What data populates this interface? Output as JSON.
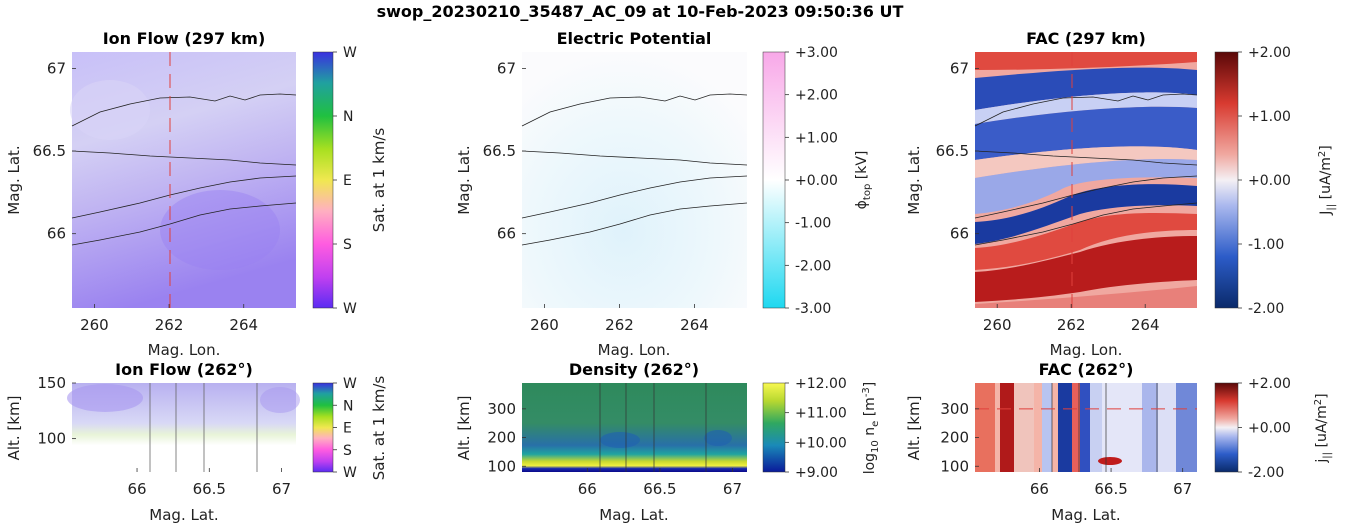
{
  "figure_title": "swop_20230210_35487_AC_09 at 10-Feb-2023 09:50:36 UT",
  "colors": {
    "ion_flow_bg": "#b8b0f0",
    "potential_bg": "#eaf6fb",
    "fac_positive": "#b2182b",
    "fac_negative": "#2c4fa8",
    "density_high": "#2e8b57",
    "density_low": "#1f3fa0",
    "cut_line": "#e0403c",
    "contour": "#222222"
  },
  "chart_data": [
    {
      "id": "ion_flow_map",
      "type": "heatmap",
      "title": "Ion Flow (297 km)",
      "xlabel": "Mag. Lon.",
      "ylabel": "Mag. Lat.",
      "xlim": [
        259.4,
        265.4
      ],
      "ylim": [
        65.55,
        67.1
      ],
      "xticks": [
        {
          "v": 260,
          "t": "260"
        },
        {
          "v": 262,
          "t": "262"
        },
        {
          "v": 264,
          "t": "264"
        }
      ],
      "yticks": [
        {
          "v": 66,
          "t": "66"
        },
        {
          "v": 66.5,
          "t": "66.5"
        },
        {
          "v": 67,
          "t": "67"
        }
      ],
      "cut_lon": 262,
      "colorbar": {
        "label": "Sat. at 1 km/s",
        "ticks": [
          "W",
          "N",
          "E",
          "S",
          "W"
        ]
      }
    },
    {
      "id": "potential_map",
      "type": "heatmap",
      "title": "Electric Potential",
      "xlabel": "Mag. Lon.",
      "ylabel": "Mag. Lat.",
      "xlim": [
        259.4,
        265.4
      ],
      "ylim": [
        65.55,
        67.1
      ],
      "xticks": [
        {
          "v": 260,
          "t": "260"
        },
        {
          "v": 262,
          "t": "262"
        },
        {
          "v": 264,
          "t": "264"
        }
      ],
      "yticks": [
        {
          "v": 66,
          "t": "66"
        },
        {
          "v": 66.5,
          "t": "66.5"
        },
        {
          "v": 67,
          "t": "67"
        }
      ],
      "colorbar": {
        "label": "ϕtop [kV]",
        "ticks": [
          "+3.00",
          "+2.00",
          "+1.00",
          "+0.00",
          "-1.00",
          "-2.00",
          "-3.00"
        ]
      }
    },
    {
      "id": "fac_map",
      "type": "heatmap",
      "title": "FAC (297 km)",
      "xlabel": "Mag. Lon.",
      "ylabel": "Mag. Lat.",
      "xlim": [
        259.4,
        265.4
      ],
      "ylim": [
        65.55,
        67.1
      ],
      "xticks": [
        {
          "v": 260,
          "t": "260"
        },
        {
          "v": 262,
          "t": "262"
        },
        {
          "v": 264,
          "t": "264"
        }
      ],
      "yticks": [
        {
          "v": 66,
          "t": "66"
        },
        {
          "v": 66.5,
          "t": "66.5"
        },
        {
          "v": 67,
          "t": "67"
        }
      ],
      "cut_lon": 262,
      "colorbar": {
        "label": "J|| [uA/m2]",
        "ticks": [
          "+2.00",
          "+1.00",
          "+0.00",
          "-1.00",
          "-2.00"
        ]
      }
    },
    {
      "id": "ion_flow_cut",
      "type": "heatmap",
      "title": "Ion Flow (262°)",
      "xlabel": "Mag. Lat.",
      "ylabel": "Alt. [km]",
      "xlim": [
        65.55,
        67.1
      ],
      "ylim": [
        70,
        150
      ],
      "xticks": [
        {
          "v": 66,
          "t": "66"
        },
        {
          "v": 66.5,
          "t": "66.5"
        },
        {
          "v": 67,
          "t": "67"
        }
      ],
      "yticks": [
        {
          "v": 100,
          "t": "100"
        },
        {
          "v": 150,
          "t": "150"
        }
      ],
      "colorbar": {
        "label": "Sat. at 1 km/s",
        "ticks": [
          "W",
          "N",
          "E",
          "S",
          "W"
        ]
      }
    },
    {
      "id": "density_cut",
      "type": "heatmap",
      "title": "Density (262°)",
      "xlabel": "Mag. Lat.",
      "ylabel": "Alt. [km]",
      "xlim": [
        65.55,
        67.1
      ],
      "ylim": [
        80,
        390
      ],
      "xticks": [
        {
          "v": 66,
          "t": "66"
        },
        {
          "v": 66.5,
          "t": "66.5"
        },
        {
          "v": 67,
          "t": "67"
        }
      ],
      "yticks": [
        {
          "v": 100,
          "t": "100"
        },
        {
          "v": 200,
          "t": "200"
        },
        {
          "v": 300,
          "t": "300"
        }
      ],
      "colorbar": {
        "label": "log10 ne [m-3]",
        "ticks": [
          "+12.00",
          "+11.00",
          "+10.00",
          "+9.00"
        ]
      }
    },
    {
      "id": "fac_cut",
      "type": "heatmap",
      "title": "FAC (262°)",
      "xlabel": "Mag. Lat.",
      "ylabel": "Alt. [km]",
      "xlim": [
        65.55,
        67.1
      ],
      "ylim": [
        80,
        390
      ],
      "xticks": [
        {
          "v": 66,
          "t": "66"
        },
        {
          "v": 66.5,
          "t": "66.5"
        },
        {
          "v": 67,
          "t": "67"
        }
      ],
      "yticks": [
        {
          "v": 100,
          "t": "100"
        },
        {
          "v": 200,
          "t": "200"
        },
        {
          "v": 300,
          "t": "300"
        }
      ],
      "cut_alt": 300,
      "colorbar": {
        "label": "j|| [uA/m2]",
        "ticks": [
          "+2.00",
          "+0.00",
          "-2.00"
        ]
      }
    }
  ]
}
